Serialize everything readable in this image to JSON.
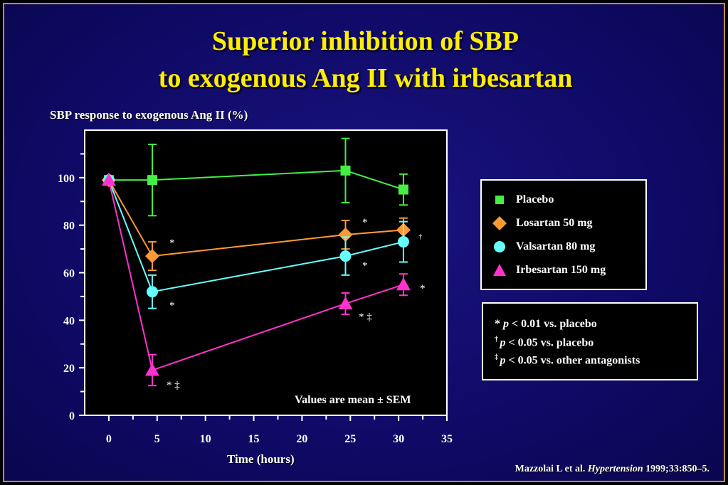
{
  "title_line1": "Superior inhibition of SBP",
  "title_line2": "to exogenous Ang II with irbesartan",
  "sem_note": "Values are mean ± SEM",
  "legend": [
    {
      "label": "Placebo",
      "color": "#44ee44",
      "marker": "square"
    },
    {
      "label": "Losartan 50 mg",
      "color": "#ff9933",
      "marker": "diamond"
    },
    {
      "label": "Valsartan 80 mg",
      "color": "#66ffff",
      "marker": "circle"
    },
    {
      "label": "Irbesartan 150 mg",
      "color": "#ff33cc",
      "marker": "triangle"
    }
  ],
  "notes": [
    {
      "symbol": "*",
      "text": "p < 0.01 vs. placebo"
    },
    {
      "symbol": "†",
      "text": "p < 0.05 vs. placebo"
    },
    {
      "symbol": "‡",
      "text": "p < 0.05 vs. other antagonists"
    }
  ],
  "citation": {
    "authors": "Mazzolai L et al.",
    "journal": "Hypertension",
    "ref": "1999;33:850–5."
  },
  "chart_data": {
    "type": "line",
    "ylabel": "SBP response to exogenous Ang II (%)",
    "xlabel": "Time  (hours)",
    "xlim": [
      -2.5,
      35
    ],
    "ylim": [
      0,
      120
    ],
    "xticks": [
      0,
      5,
      10,
      15,
      20,
      25,
      30,
      35
    ],
    "yticks": [
      0,
      20,
      40,
      60,
      80,
      100
    ],
    "series": [
      {
        "name": "Placebo",
        "color": "#44ee44",
        "marker": "square",
        "x": [
          0,
          4.5,
          24.5,
          30.5
        ],
        "y": [
          99,
          99,
          103,
          95
        ],
        "err": [
          0,
          15,
          13.5,
          6.5
        ],
        "annotations": [
          "",
          "",
          "",
          ""
        ]
      },
      {
        "name": "Losartan 50 mg",
        "color": "#ff9933",
        "marker": "diamond",
        "x": [
          0,
          4.5,
          24.5,
          30.5
        ],
        "y": [
          99,
          67,
          76,
          78
        ],
        "err": [
          0,
          6,
          6,
          5
        ],
        "annotations": [
          "",
          "*",
          "*",
          "†"
        ]
      },
      {
        "name": "Valsartan 80 mg",
        "color": "#66ffff",
        "marker": "circle",
        "x": [
          0,
          4.5,
          24.5,
          30.5
        ],
        "y": [
          99,
          52,
          67,
          73
        ],
        "err": [
          0,
          7,
          8,
          8.5
        ],
        "annotations": [
          "",
          "*",
          "*",
          ""
        ]
      },
      {
        "name": "Irbesartan 150 mg",
        "color": "#ff33cc",
        "marker": "triangle",
        "x": [
          0,
          4.5,
          24.5,
          30.5
        ],
        "y": [
          99,
          19,
          47,
          55
        ],
        "err": [
          0,
          6.5,
          4.5,
          4.5
        ],
        "annotations": [
          "",
          "* ‡",
          "* ‡",
          "*"
        ]
      }
    ]
  }
}
